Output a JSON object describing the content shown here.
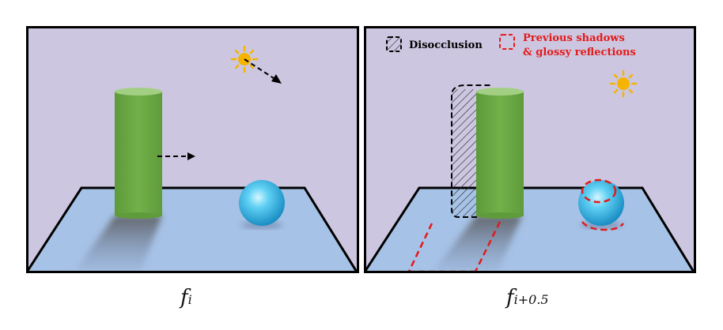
{
  "legend": {
    "disocclusion_label": "Disocclusion",
    "previous_line1": "Previous shadows",
    "previous_line2": "& glossy reflections"
  },
  "captions": {
    "left_main": "f",
    "left_sub": "i",
    "right_main": "f",
    "right_sub": "i+0.5"
  },
  "colors": {
    "sky": "#cdc6e0",
    "floor": "#a6c2e6",
    "cylinder": "#6fac47",
    "cylinder_top": "#a3cf84",
    "sphere": "#2fb5e6",
    "sun": "#f5b400",
    "legend_red": "#e31a1a",
    "outline": "#000000"
  },
  "icons": {
    "sun": "sun-icon",
    "motion_arrow": "dashed-arrow-icon",
    "disocclusion_swatch": "hatched-square-icon",
    "previous_swatch": "red-dashed-square-icon"
  }
}
